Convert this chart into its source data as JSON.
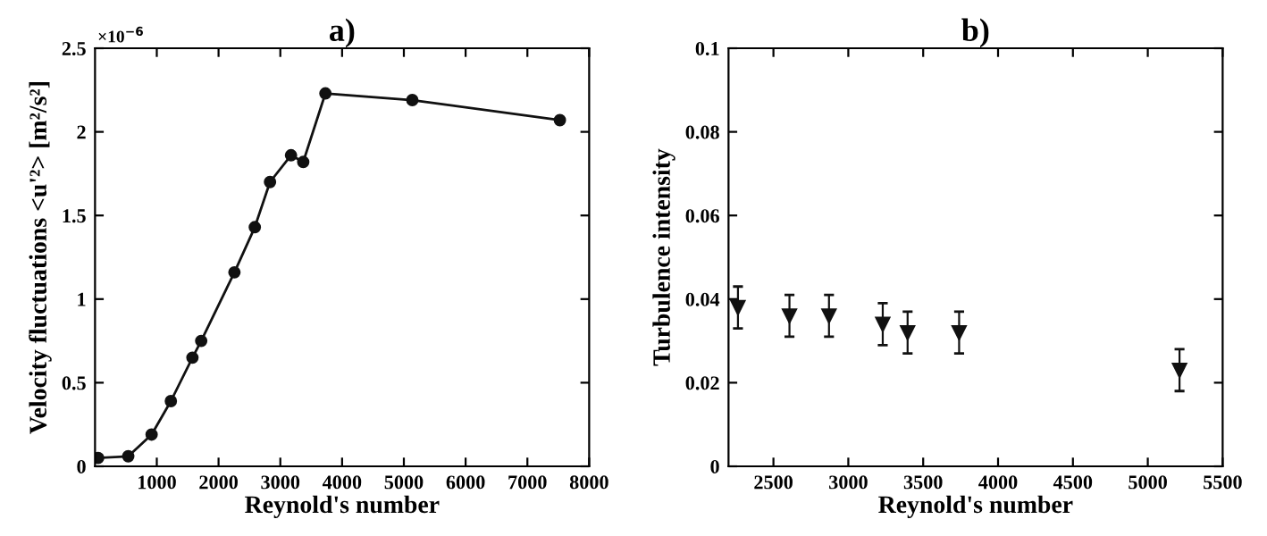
{
  "chart_data": [
    {
      "type": "line",
      "title": "a)",
      "xlabel": "Reynold's number",
      "ylabel": "Velocity fluctuations <u'²> [m²/s²]",
      "annotations": [
        "×10$^{−6}$"
      ],
      "xlim": [
        0,
        8000
      ],
      "xticks": [
        1000,
        2000,
        3000,
        4000,
        5000,
        6000,
        7000,
        8000
      ],
      "ylim": [
        0,
        2.5
      ],
      "yticks": [
        0,
        0.5,
        1,
        {
          "value": 1.5,
          "label": "1.5"
        },
        2,
        2.5
      ],
      "marker": "circle",
      "grid": false,
      "legend": false,
      "series": [
        {
          "color": "#111111",
          "x": [
            50,
            538,
            916,
            1228,
            1577,
            1719,
            2257,
            2587,
            2833,
            3173,
            3371,
            3730,
            5137,
            7526
          ],
          "values": [
            0.05,
            0.06,
            0.19,
            0.39,
            0.65,
            0.75,
            1.16,
            1.43,
            1.7,
            1.86,
            1.82,
            2.23,
            2.19,
            2.07
          ]
        }
      ]
    },
    {
      "type": "scatter",
      "title": "b)",
      "xlabel": "Reynold's number",
      "ylabel": "Turbulence intensity",
      "xlim": [
        2200,
        5500
      ],
      "xticks": [
        2500,
        3000,
        3500,
        4000,
        4500,
        5000,
        5500
      ],
      "ylim": [
        0,
        0.1
      ],
      "yticks": [
        0,
        0.02,
        0.04,
        0.06,
        0.08,
        0.1
      ],
      "marker": "triangle",
      "grid": false,
      "legend": false,
      "series": [
        {
          "color": "#111111",
          "x": [
            2263,
            2607,
            2871,
            3230,
            3396,
            3740,
            5212
          ],
          "values": [
            0.038,
            0.036,
            0.036,
            0.034,
            0.032,
            0.032,
            0.023
          ],
          "errors": [
            0.005,
            0.005,
            0.005,
            0.005,
            0.005,
            0.005,
            0.005
          ]
        }
      ]
    }
  ]
}
